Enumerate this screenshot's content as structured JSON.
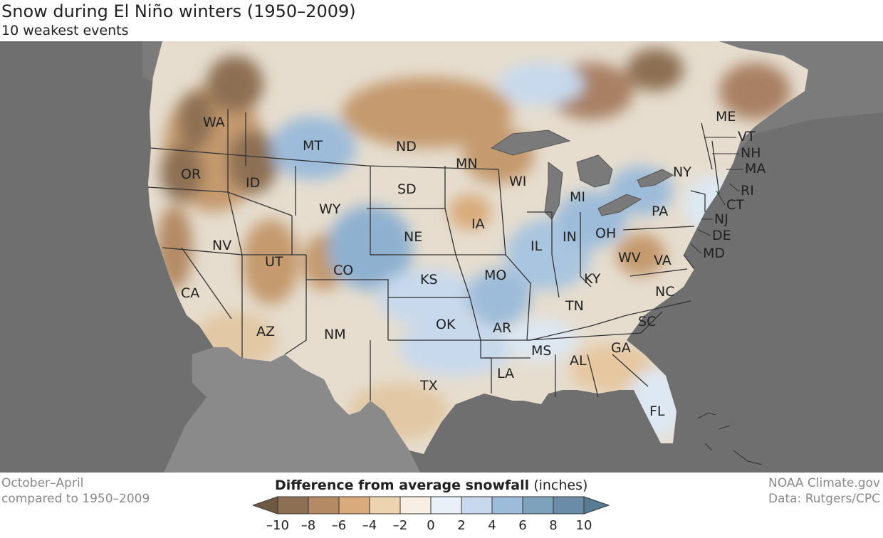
{
  "title": "Snow during El Niño winters (1950–2009)",
  "subtitle": "10 weakest events",
  "footer_left": [
    "October–April",
    "compared to 1950–2009"
  ],
  "footer_right": [
    "NOAA Climate.gov",
    "Data: Rutgers/CPC"
  ],
  "legend": {
    "title_bold": "Difference from average snowfall",
    "title_units": "(inches)",
    "ticks": [
      "–10",
      "–8",
      "–6",
      "–4",
      "–2",
      "0",
      "2",
      "4",
      "6",
      "8",
      "10"
    ],
    "colors": [
      "#6e5a42",
      "#8d6f53",
      "#b48a65",
      "#d9ab7c",
      "#eed3b0",
      "#f8efe4",
      "#e9f0f8",
      "#c8d9ed",
      "#9dbcd9",
      "#7ea1bc",
      "#6a8ca6",
      "#577c94"
    ]
  },
  "states": [
    {
      "abbr": "WA"
    },
    {
      "abbr": "OR"
    },
    {
      "abbr": "CA"
    },
    {
      "abbr": "ID"
    },
    {
      "abbr": "NV"
    },
    {
      "abbr": "MT"
    },
    {
      "abbr": "WY"
    },
    {
      "abbr": "UT"
    },
    {
      "abbr": "AZ"
    },
    {
      "abbr": "CO"
    },
    {
      "abbr": "NM"
    },
    {
      "abbr": "ND"
    },
    {
      "abbr": "SD"
    },
    {
      "abbr": "NE"
    },
    {
      "abbr": "KS"
    },
    {
      "abbr": "OK"
    },
    {
      "abbr": "TX"
    },
    {
      "abbr": "MN"
    },
    {
      "abbr": "IA"
    },
    {
      "abbr": "MO"
    },
    {
      "abbr": "AR"
    },
    {
      "abbr": "LA"
    },
    {
      "abbr": "WI"
    },
    {
      "abbr": "IL"
    },
    {
      "abbr": "MI"
    },
    {
      "abbr": "IN"
    },
    {
      "abbr": "OH"
    },
    {
      "abbr": "KY"
    },
    {
      "abbr": "TN"
    },
    {
      "abbr": "MS"
    },
    {
      "abbr": "AL"
    },
    {
      "abbr": "GA"
    },
    {
      "abbr": "FL"
    },
    {
      "abbr": "SC"
    },
    {
      "abbr": "NC"
    },
    {
      "abbr": "VA"
    },
    {
      "abbr": "WV"
    },
    {
      "abbr": "PA"
    },
    {
      "abbr": "NY"
    },
    {
      "abbr": "ME"
    },
    {
      "abbr": "VT"
    },
    {
      "abbr": "NH"
    },
    {
      "abbr": "MA"
    },
    {
      "abbr": "RI"
    },
    {
      "abbr": "CT"
    },
    {
      "abbr": "NJ"
    },
    {
      "abbr": "DE"
    },
    {
      "abbr": "MD"
    }
  ]
}
